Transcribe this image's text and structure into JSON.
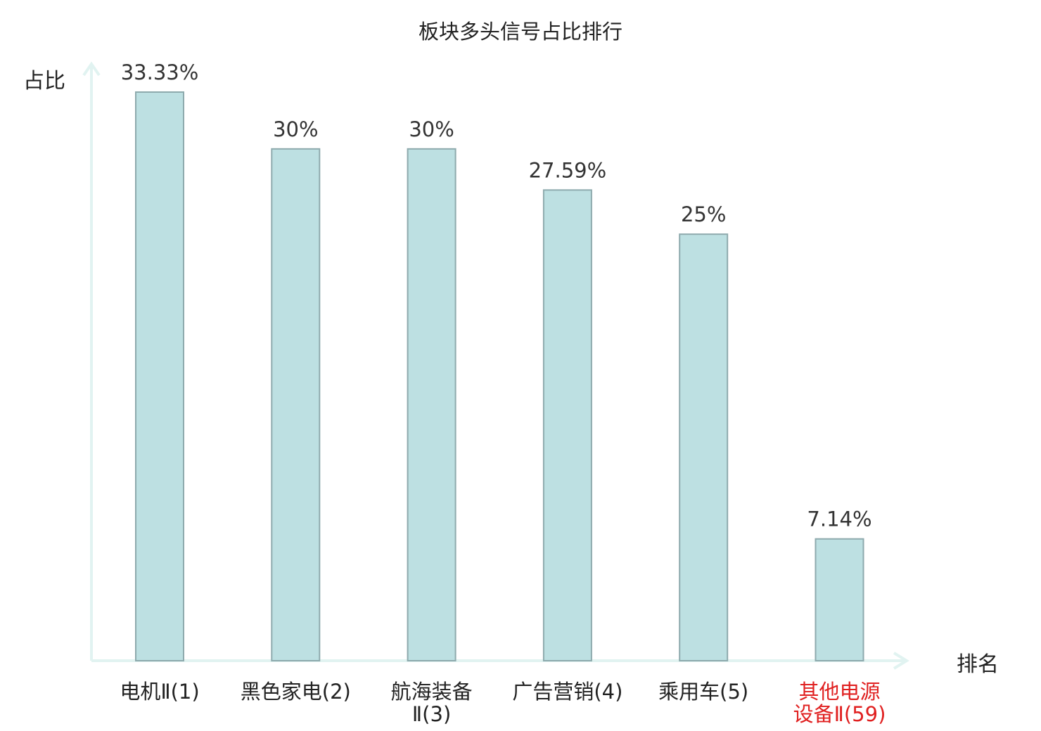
{
  "chart_data": {
    "type": "bar",
    "title": "板块多头信号占比排行",
    "xlabel": "排名",
    "ylabel": "占比",
    "ylim": [
      0,
      33.33
    ],
    "categories": [
      {
        "name": "电机Ⅱ",
        "rank": "(1)",
        "lines": [
          "电机Ⅱ(1)"
        ],
        "highlight": false
      },
      {
        "name": "黑色家电",
        "rank": "(2)",
        "lines": [
          "黑色家电(2)"
        ],
        "highlight": false
      },
      {
        "name": "航海装备Ⅱ",
        "rank": "(3)",
        "lines": [
          "航海装备",
          "Ⅱ(3)"
        ],
        "highlight": false
      },
      {
        "name": "广告营销",
        "rank": "(4)",
        "lines": [
          "广告营销(4)"
        ],
        "highlight": false
      },
      {
        "name": "乘用车",
        "rank": "(5)",
        "lines": [
          "乘用车(5)"
        ],
        "highlight": false
      },
      {
        "name": "其他电源设备Ⅱ",
        "rank": "(59)",
        "lines": [
          "其他电源",
          "设备Ⅱ(59)"
        ],
        "highlight": true
      }
    ],
    "values": [
      33.33,
      30,
      30,
      27.59,
      25,
      7.14
    ],
    "data_labels": [
      "33.33%",
      "30%",
      "30%",
      "27.59%",
      "25%",
      "7.14%"
    ],
    "grid": false,
    "legend": "none"
  },
  "colors": {
    "bar_fill": "#bde0e2",
    "bar_stroke": "#8eaaad",
    "axis": "#e1f3f1",
    "text": "#222222",
    "highlight": "#e02020"
  }
}
